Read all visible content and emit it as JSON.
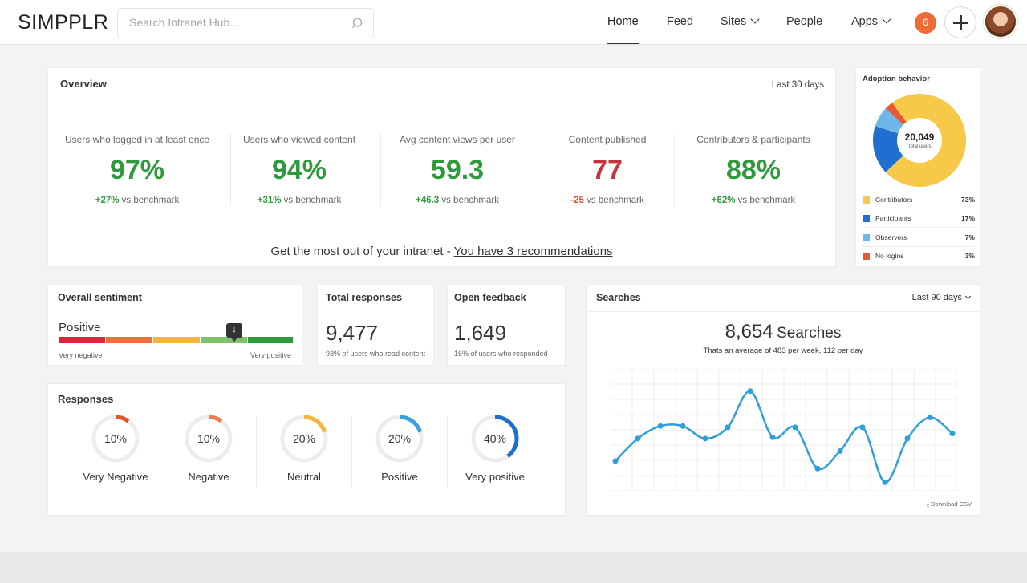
{
  "header": {
    "logo": "SIMPPLR",
    "search_placeholder": "Search Intranet Hub...",
    "nav": [
      {
        "label": "Home",
        "active": true
      },
      {
        "label": "Feed"
      },
      {
        "label": "Sites",
        "dropdown": true
      },
      {
        "label": "People"
      },
      {
        "label": "Apps",
        "dropdown": true
      }
    ],
    "notifications": "6"
  },
  "overview": {
    "title": "Overview",
    "range": "Last 30 days",
    "metrics": [
      {
        "label": "Users who logged in at least once",
        "value": "97%",
        "delta": "+27%",
        "suffix": "vs benchmark",
        "status": "positive"
      },
      {
        "label": "Users who viewed content",
        "value": "94%",
        "delta": "+31%",
        "suffix": "vs benchmark",
        "status": "positive"
      },
      {
        "label": "Avg content views per user",
        "value": "59.3",
        "delta": "+46.3",
        "suffix": "vs benchmark",
        "status": "positive"
      },
      {
        "label": "Content published",
        "value": "77",
        "delta": "-25",
        "suffix": "vs benchmark",
        "status": "negative"
      },
      {
        "label": "Contributors & participants",
        "value": "88%",
        "delta": "+62%",
        "suffix": "vs benchmark",
        "status": "positive"
      }
    ],
    "footer_text": "Get the most out of your intranet -",
    "footer_link": "You have 3 recommendations"
  },
  "adoption": {
    "title": "Adoption behavior",
    "total": "20,049",
    "total_label": "Total users",
    "segments": [
      {
        "name": "Contributors",
        "value": 73,
        "label": "73%",
        "color": "#f7c948"
      },
      {
        "name": "Participants",
        "value": 17,
        "label": "17%",
        "color": "#1f6fd1"
      },
      {
        "name": "Observers",
        "value": 7,
        "label": "7%",
        "color": "#6db8e8"
      },
      {
        "name": "No logins",
        "value": 3,
        "label": "3%",
        "color": "#ea5a32"
      }
    ]
  },
  "sentiment": {
    "title": "Overall sentiment",
    "value": "Positive",
    "position": 0.75,
    "scale_left": "Very negative",
    "scale_right": "Very positive"
  },
  "total_responses": {
    "title": "Total responses",
    "value": "9,477",
    "note": "93% of users who read content"
  },
  "open_feedback": {
    "title": "Open feedback",
    "value": "1,649",
    "note": "16% of users who responded"
  },
  "responses": {
    "title": "Responses",
    "items": [
      {
        "label": "Very Negative",
        "value": "10%",
        "fraction": 0.1,
        "color": "#e0572b"
      },
      {
        "label": "Negative",
        "value": "10%",
        "fraction": 0.1,
        "color": "#ef7a4e"
      },
      {
        "label": "Neutral",
        "value": "20%",
        "fraction": 0.2,
        "color": "#f5b53a"
      },
      {
        "label": "Positive",
        "value": "20%",
        "fraction": 0.2,
        "color": "#3aa0dc"
      },
      {
        "label": "Very positive",
        "value": "40%",
        "fraction": 0.4,
        "color": "#1f6fd1"
      }
    ]
  },
  "searches": {
    "title": "Searches",
    "range": "Last 90 days",
    "total": "8,654",
    "total_word": "Searches",
    "subtitle": "Thats an average of 483 per week, 112 per day",
    "download": "Download CSV",
    "chart_data": {
      "type": "line",
      "values": [
        20,
        38,
        48,
        48,
        38,
        47,
        76,
        39,
        47,
        14,
        28,
        47,
        3,
        38,
        55,
        42
      ],
      "ylim": [
        0,
        90
      ]
    }
  }
}
